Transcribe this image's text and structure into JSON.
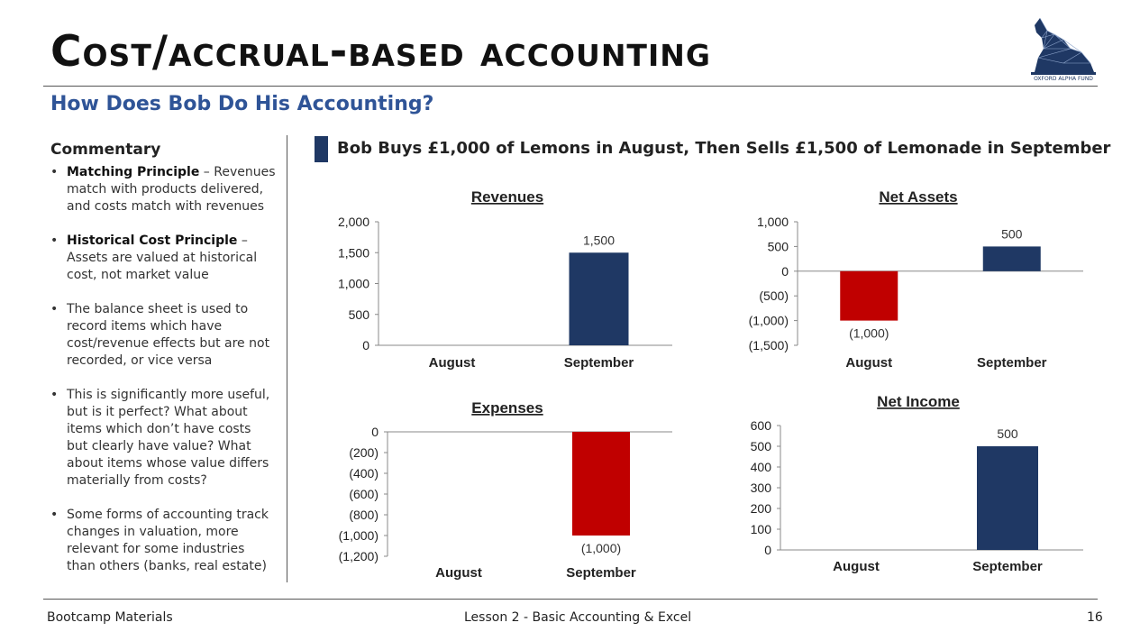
{
  "title": "Cost/accrual-based accounting",
  "subtitle": "How Does Bob Do His Accounting?",
  "logo": {
    "text": "OXFORD ALPHA FUND",
    "icon": "wolf-icon",
    "color": "#1f3864"
  },
  "commentary": {
    "heading": "Commentary",
    "bullets": [
      {
        "bold": "Matching Principle",
        "text": " – Revenues match with products delivered, and costs match with revenues"
      },
      {
        "bold": "Historical Cost Principle",
        "text": " – Assets are valued at historical cost, not market value"
      },
      {
        "bold": "",
        "text": "The balance sheet is used to record items which have cost/revenue effects but are not recorded, or vice versa"
      },
      {
        "bold": "",
        "text": "This is significantly more useful, but is it perfect? What about items which don’t have costs but clearly have value? What about items whose value differs materially from costs?"
      },
      {
        "bold": "",
        "text": "Some forms of accounting track changes in valuation, more relevant for some industries than others (banks, real estate)"
      }
    ]
  },
  "exhibit_title": "Bob Buys £1,000 of Lemons in August, Then Sells £1,500 of Lemonade in September",
  "colors": {
    "navy": "#1f3864",
    "red": "#c00000",
    "accent_blue": "#2f5497"
  },
  "chart_data": [
    {
      "type": "bar",
      "title": "Revenues",
      "categories": [
        "August",
        "September"
      ],
      "values": [
        0,
        1500
      ],
      "data_labels": [
        "",
        "1,500"
      ],
      "ylim": [
        0,
        2000
      ],
      "ticks": [
        0,
        500,
        1000,
        1500,
        2000
      ],
      "tick_labels": [
        "0",
        "500",
        "1,000",
        "1,500",
        "2,000"
      ],
      "bar_colors": [
        "#1f3864",
        "#1f3864"
      ],
      "grid": false
    },
    {
      "type": "bar",
      "title": "Net Assets",
      "categories": [
        "August",
        "September"
      ],
      "values": [
        -1000,
        500
      ],
      "data_labels": [
        "(1,000)",
        "500"
      ],
      "ylim": [
        -1500,
        1000
      ],
      "ticks": [
        -1500,
        -1000,
        -500,
        0,
        500,
        1000
      ],
      "tick_labels": [
        "(1,500)",
        "(1,000)",
        "(500)",
        "0",
        "500",
        "1,000"
      ],
      "bar_colors": [
        "#c00000",
        "#1f3864"
      ],
      "grid": false
    },
    {
      "type": "bar",
      "title": "Expenses",
      "categories": [
        "August",
        "September"
      ],
      "values": [
        0,
        -1000
      ],
      "data_labels": [
        "",
        "(1,000)"
      ],
      "ylim": [
        -1200,
        0
      ],
      "ticks": [
        -1200,
        -1000,
        -800,
        -600,
        -400,
        -200,
        0
      ],
      "tick_labels": [
        "(1,200)",
        "(1,000)",
        "(800)",
        "(600)",
        "(400)",
        "(200)",
        "0"
      ],
      "bar_colors": [
        "#c00000",
        "#c00000"
      ],
      "grid": false
    },
    {
      "type": "bar",
      "title": "Net Income",
      "categories": [
        "August",
        "September"
      ],
      "values": [
        0,
        500
      ],
      "data_labels": [
        "",
        "500"
      ],
      "ylim": [
        0,
        600
      ],
      "ticks": [
        0,
        100,
        200,
        300,
        400,
        500,
        600
      ],
      "tick_labels": [
        "0",
        "100",
        "200",
        "300",
        "400",
        "500",
        "600"
      ],
      "bar_colors": [
        "#1f3864",
        "#1f3864"
      ],
      "grid": false
    }
  ],
  "footer": {
    "left": "Bootcamp Materials",
    "center": "Lesson 2 - Basic Accounting & Excel",
    "page_number": "16"
  }
}
